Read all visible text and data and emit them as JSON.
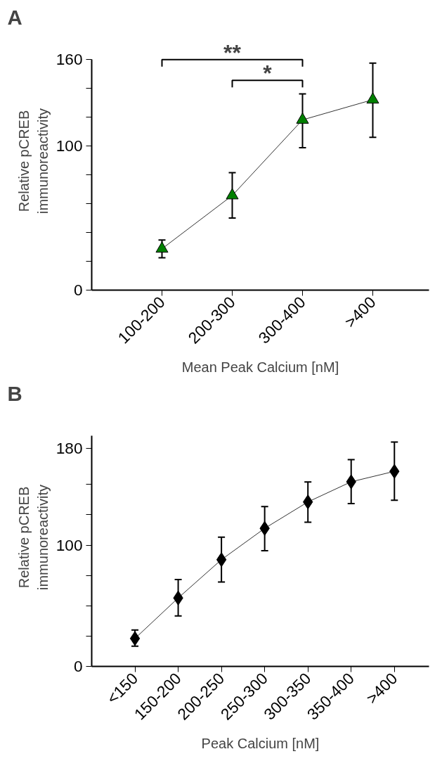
{
  "chart_data": [
    {
      "type": "line",
      "title": "A",
      "xlabel": "Mean Peak Calcium [nM]",
      "ylabel": "Relative pCREB\nimmunoreactivity",
      "categories": [
        "100-200",
        "200-300",
        "300-400",
        ">400"
      ],
      "series": [
        {
          "color": "#008000",
          "values": [
            28.7,
            65.7,
            118.2,
            132.2
          ],
          "errors": [
            [
              22.5,
              34.8
            ],
            [
              50,
              81.5
            ],
            [
              98.9,
              136.2
            ],
            [
              106.1,
              157.6
            ]
          ]
        }
      ],
      "marker": "triangle",
      "ylim": [
        0,
        160
      ],
      "yticks": [
        0,
        {
          "value": 20,
          "label": null
        },
        {
          "value": 40,
          "label": null
        },
        {
          "value": 60,
          "label": null
        },
        {
          "value": 80,
          "label": null
        },
        100,
        {
          "value": 120,
          "label": null
        },
        {
          "value": 140,
          "label": null
        },
        160
      ],
      "annotations": [
        "**",
        "*"
      ],
      "grid": false
    },
    {
      "type": "line",
      "title": "B",
      "xlabel": "Peak Calcium [nM]",
      "ylabel": "Relative pCREB\nimmunoreactivity",
      "categories": [
        "<150",
        "150-200",
        "200-250",
        "250-300",
        "300-350",
        "350-400",
        ">400"
      ],
      "series": [
        {
          "color": "#000000",
          "values": [
            23,
            56.4,
            88,
            113.8,
            135.6,
            152.2,
            160.8
          ],
          "errors": [
            [
              16.6,
              30
            ],
            [
              41.6,
              71.6
            ],
            [
              69.6,
              106.6
            ],
            [
              95.4,
              131.8
            ],
            [
              118.8,
              152
            ],
            [
              134.2,
              170.4
            ],
            [
              137,
              185
            ]
          ]
        }
      ],
      "marker": "diamond",
      "ylim": [
        0,
        190
      ],
      "yticks": [
        0,
        {
          "value": 25,
          "label": null
        },
        {
          "value": 50,
          "label": null
        },
        {
          "value": 75,
          "label": null
        },
        100,
        {
          "value": 125,
          "label": null
        },
        {
          "value": 150,
          "label": null
        },
        180
      ],
      "grid": false
    }
  ]
}
